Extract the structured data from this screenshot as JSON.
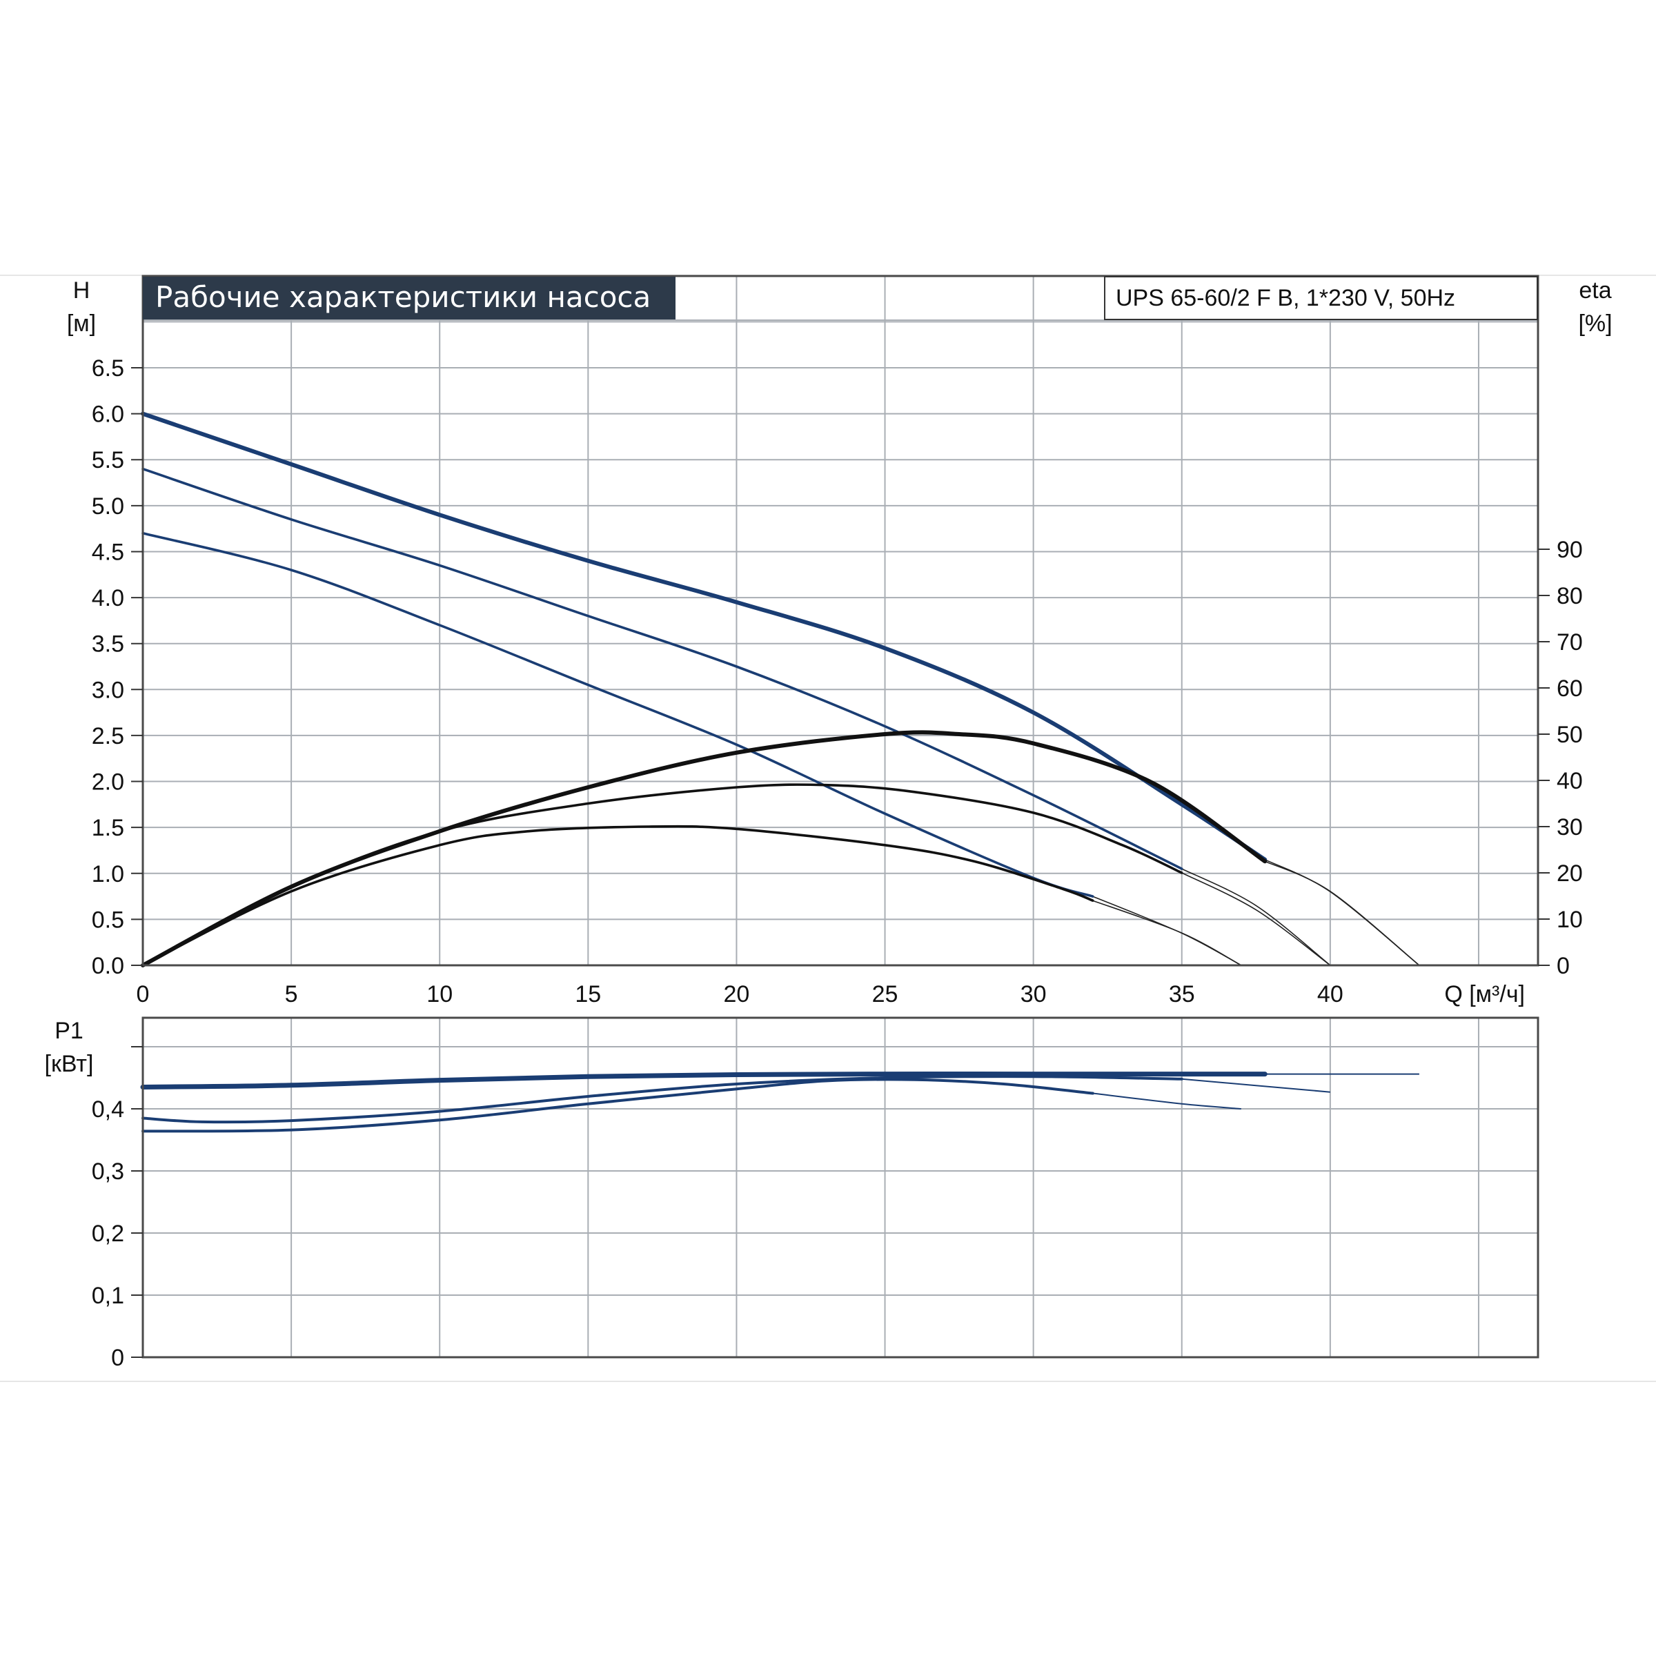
{
  "title": "Рабочие характеристики насоса",
  "model_label": "UPS 65-60/2 F B, 1*230 V, 50Hz",
  "colors": {
    "title_bg": "#2d3a4a",
    "title_fg": "#ffffff",
    "pump_curve": "#1a3d73",
    "eta_curve": "#111111",
    "power_curve": "#1a3d73",
    "grid": "#a9aeb4"
  },
  "chart_data": [
    {
      "type": "line",
      "xlabel": "Q [м³/ч]",
      "ylabel": "H",
      "ylabel_unit": "[м]",
      "y2label": "eta",
      "y2label_unit": "[%]",
      "xlim": [
        0,
        47
      ],
      "ylim": [
        0,
        7
      ],
      "y2lim": [
        0,
        90
      ],
      "xticks": [
        "0",
        "5",
        "10",
        "15",
        "20",
        "25",
        "30",
        "35",
        "40"
      ],
      "yticks": [
        "0.0",
        "0.5",
        "1.0",
        "1.5",
        "2.0",
        "2.5",
        "3.0",
        "3.5",
        "4.0",
        "4.5",
        "5.0",
        "5.5",
        "6.0",
        "6.5"
      ],
      "y2ticks": [
        "0",
        "10",
        "20",
        "30",
        "40",
        "50",
        "60",
        "70",
        "80",
        "90"
      ],
      "grid": true,
      "series": [
        {
          "kind": "head",
          "axis": "y",
          "points": [
            [
              0,
              6.0
            ],
            [
              5,
              5.45
            ],
            [
              10,
              4.9
            ],
            [
              15,
              4.4
            ],
            [
              20,
              3.95
            ],
            [
              25,
              3.45
            ],
            [
              30,
              2.75
            ],
            [
              35,
              1.75
            ],
            [
              37.8,
              1.15
            ]
          ],
          "extension": [
            [
              37.8,
              1.15
            ],
            [
              40,
              0.8
            ],
            [
              43,
              0.0
            ]
          ]
        },
        {
          "kind": "head",
          "axis": "y",
          "points": [
            [
              0,
              5.4
            ],
            [
              5,
              4.85
            ],
            [
              10,
              4.35
            ],
            [
              15,
              3.8
            ],
            [
              20,
              3.25
            ],
            [
              25,
              2.6
            ],
            [
              30,
              1.85
            ],
            [
              35,
              1.05
            ]
          ],
          "extension": [
            [
              35,
              1.05
            ],
            [
              37.5,
              0.65
            ],
            [
              40,
              0.0
            ]
          ]
        },
        {
          "kind": "head",
          "axis": "y",
          "points": [
            [
              0,
              4.7
            ],
            [
              5,
              4.3
            ],
            [
              10,
              3.7
            ],
            [
              15,
              3.05
            ],
            [
              20,
              2.4
            ],
            [
              25,
              1.65
            ],
            [
              30,
              0.95
            ],
            [
              32,
              0.75
            ]
          ],
          "extension": [
            [
              32,
              0.75
            ],
            [
              35,
              0.35
            ],
            [
              37,
              0.0
            ]
          ]
        },
        {
          "kind": "efficiency",
          "axis": "y2",
          "points": [
            [
              0,
              0
            ],
            [
              5,
              17
            ],
            [
              10,
              29
            ],
            [
              15,
              38.5
            ],
            [
              20,
              46
            ],
            [
              25,
              50
            ],
            [
              27.5,
              50
            ],
            [
              30,
              48
            ],
            [
              34,
              39.5
            ],
            [
              37.8,
              22.5
            ]
          ],
          "extension": [
            [
              37.8,
              22.5
            ],
            [
              40,
              16
            ],
            [
              43,
              0
            ]
          ]
        },
        {
          "kind": "efficiency",
          "axis": "y2",
          "points": [
            [
              0,
              0
            ],
            [
              5,
              17
            ],
            [
              10,
              29
            ],
            [
              15,
              35
            ],
            [
              20,
              38.5
            ],
            [
              23,
              39
            ],
            [
              26,
              37.5
            ],
            [
              30,
              33
            ],
            [
              33,
              26
            ],
            [
              35,
              20
            ]
          ],
          "extension": [
            [
              35,
              20
            ],
            [
              37.5,
              12
            ],
            [
              40,
              0
            ]
          ]
        },
        {
          "kind": "efficiency",
          "axis": "y2",
          "points": [
            [
              0,
              0
            ],
            [
              5,
              16
            ],
            [
              10,
              26
            ],
            [
              13,
              29
            ],
            [
              17,
              30
            ],
            [
              20,
              29.5
            ],
            [
              25,
              26
            ],
            [
              28,
              22.5
            ],
            [
              31,
              16.5
            ],
            [
              32,
              14
            ]
          ],
          "extension": [
            [
              32,
              14
            ],
            [
              35,
              7
            ],
            [
              37,
              0
            ]
          ]
        }
      ]
    },
    {
      "type": "line",
      "xlabel": "",
      "ylabel": "P1",
      "ylabel_unit": "[кВт]",
      "xlim": [
        0,
        47
      ],
      "ylim": [
        0,
        0.5
      ],
      "yticks": [
        "0",
        "0,1",
        "0,2",
        "0,3",
        "0,4"
      ],
      "grid": true,
      "series": [
        {
          "kind": "power",
          "points": [
            [
              0,
              0.435
            ],
            [
              5,
              0.438
            ],
            [
              10,
              0.446
            ],
            [
              15,
              0.452
            ],
            [
              20,
              0.455
            ],
            [
              25,
              0.456
            ],
            [
              30,
              0.456
            ],
            [
              35,
              0.456
            ],
            [
              37.8,
              0.456
            ]
          ],
          "extension": [
            [
              37.8,
              0.456
            ],
            [
              43,
              0.456
            ]
          ]
        },
        {
          "kind": "power",
          "points": [
            [
              0,
              0.385
            ],
            [
              2,
              0.379
            ],
            [
              5,
              0.381
            ],
            [
              10,
              0.396
            ],
            [
              15,
              0.42
            ],
            [
              20,
              0.44
            ],
            [
              25,
              0.45
            ],
            [
              30,
              0.452
            ],
            [
              35,
              0.448
            ]
          ],
          "extension": [
            [
              35,
              0.448
            ],
            [
              40,
              0.427
            ]
          ]
        },
        {
          "kind": "power",
          "points": [
            [
              0,
              0.364
            ],
            [
              5,
              0.366
            ],
            [
              10,
              0.382
            ],
            [
              15,
              0.408
            ],
            [
              20,
              0.432
            ],
            [
              23,
              0.445
            ],
            [
              26,
              0.447
            ],
            [
              29,
              0.44
            ],
            [
              32,
              0.425
            ]
          ],
          "extension": [
            [
              32,
              0.425
            ],
            [
              35,
              0.408
            ],
            [
              37,
              0.4
            ]
          ]
        }
      ]
    }
  ]
}
